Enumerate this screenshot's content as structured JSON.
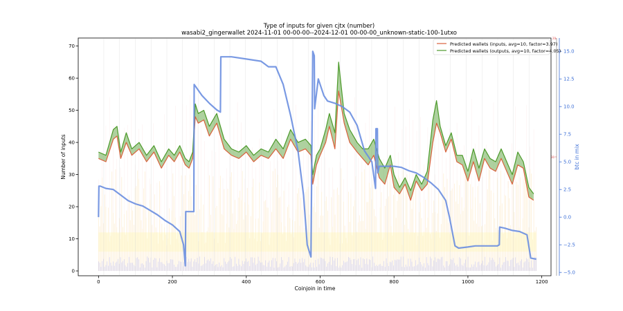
{
  "chart_data": {
    "type": "line",
    "title": "Type of inputs for given cjtx (number)",
    "subtitle": "wasabi2_gingerwallet 2024-11-01 00-00-00--2024-12-01 00-00-00_unknown-static-100-1utxo",
    "xlabel": "Coinjoin in time",
    "ylabel": "Number of inputs",
    "y2label": "btc in mix",
    "xlim": [
      -55,
      1225
    ],
    "ylim": [
      -1.5,
      72.5
    ],
    "y2lim": [
      -5.3,
      16.2
    ],
    "xticks": [
      0,
      200,
      400,
      600,
      800,
      1000,
      1200
    ],
    "yticks": [
      0,
      10,
      20,
      30,
      40,
      50,
      60,
      70
    ],
    "y2ticks": [
      -5.0,
      -2.5,
      0.0,
      2.5,
      5.0,
      7.5,
      10.0,
      12.5,
      15.0
    ],
    "y2tick_labels": [
      "−5.0",
      "−2.5",
      "0.0",
      "2.5",
      "5.0",
      "7.5",
      "10.0",
      "12.5",
      "15.0"
    ],
    "y3_marker_labels": [
      "30",
      "20"
    ],
    "legend_position": "top-right",
    "series": [
      {
        "name": "Predicted wallets (inputs, avg=10, factor=3.97)",
        "color": "#d9603b",
        "x": [
          0,
          20,
          40,
          50,
          60,
          75,
          90,
          110,
          130,
          150,
          170,
          190,
          205,
          220,
          235,
          245,
          255,
          262,
          270,
          285,
          300,
          320,
          340,
          360,
          380,
          400,
          420,
          440,
          460,
          480,
          500,
          520,
          540,
          560,
          575,
          580,
          590,
          600,
          615,
          625,
          640,
          650,
          665,
          680,
          700,
          715,
          730,
          745,
          760,
          775,
          790,
          800,
          815,
          830,
          845,
          860,
          875,
          890,
          905,
          915,
          925,
          940,
          955,
          970,
          985,
          1000,
          1015,
          1030,
          1045,
          1060,
          1075,
          1090,
          1105,
          1120,
          1135,
          1150,
          1165,
          1178
        ],
        "values": [
          35,
          34,
          41,
          42,
          35,
          40,
          36,
          38,
          34,
          37,
          32,
          36,
          34,
          37,
          33,
          32,
          35,
          48,
          46,
          47,
          42,
          46,
          38,
          36,
          35,
          37,
          34,
          36,
          35,
          38,
          35,
          41,
          37,
          38,
          36,
          27,
          33,
          36,
          40,
          45,
          38,
          56,
          46,
          40,
          37,
          35,
          33,
          36,
          29,
          27,
          33,
          26,
          24,
          27,
          22,
          28,
          25,
          27,
          40,
          46,
          43,
          37,
          41,
          34,
          33,
          28,
          34,
          28,
          35,
          32,
          31,
          35,
          31,
          27,
          33,
          32,
          23,
          22
        ]
      },
      {
        "name": "Predicted wallets (outputs, avg=10, factor=4.05)",
        "color": "#4c9a2a",
        "x": [
          0,
          20,
          40,
          50,
          60,
          75,
          90,
          110,
          130,
          150,
          170,
          190,
          205,
          220,
          235,
          245,
          255,
          262,
          270,
          285,
          300,
          320,
          340,
          360,
          380,
          400,
          420,
          440,
          460,
          480,
          500,
          520,
          540,
          560,
          575,
          580,
          590,
          600,
          615,
          625,
          640,
          650,
          665,
          680,
          700,
          715,
          730,
          745,
          760,
          775,
          790,
          800,
          815,
          830,
          845,
          860,
          875,
          890,
          905,
          915,
          925,
          940,
          955,
          970,
          985,
          1000,
          1015,
          1030,
          1045,
          1060,
          1075,
          1090,
          1105,
          1120,
          1135,
          1150,
          1165,
          1178
        ],
        "values": [
          37,
          36,
          44,
          45,
          37,
          43,
          38,
          40,
          36,
          39,
          34,
          38,
          36,
          39,
          35,
          34,
          37,
          52,
          49,
          50,
          45,
          49,
          41,
          38,
          37,
          39,
          36,
          38,
          37,
          41,
          38,
          44,
          40,
          41,
          39,
          30,
          36,
          38,
          44,
          49,
          43,
          65,
          49,
          44,
          40,
          38,
          38,
          41,
          35,
          32,
          36,
          30,
          26,
          29,
          25,
          30,
          27,
          31,
          47,
          53,
          45,
          39,
          43,
          36,
          36,
          31,
          38,
          32,
          38,
          35,
          34,
          38,
          34,
          30,
          37,
          34,
          26,
          24
        ]
      },
      {
        "name": "btc in mix",
        "axis": "right",
        "color": "#6a8ee0",
        "x": [
          0,
          1,
          5,
          20,
          40,
          60,
          80,
          100,
          120,
          140,
          160,
          180,
          200,
          220,
          230,
          235,
          236,
          250,
          258,
          259,
          280,
          300,
          320,
          330,
          331,
          360,
          400,
          440,
          460,
          480,
          500,
          520,
          540,
          555,
          565,
          575,
          580,
          584,
          585,
          595,
          610,
          620,
          640,
          660,
          680,
          700,
          720,
          740,
          750,
          751,
          755,
          756,
          760,
          780,
          800,
          820,
          840,
          860,
          880,
          900,
          920,
          940,
          950,
          965,
          975,
          1000,
          1020,
          1040,
          1060,
          1080,
          1085,
          1086,
          1100,
          1120,
          1140,
          1160,
          1170,
          1185
        ],
        "values": [
          0.0,
          2.8,
          2.8,
          2.6,
          2.5,
          2.0,
          1.5,
          1.2,
          1.0,
          0.6,
          0.2,
          -0.3,
          -0.7,
          -1.3,
          -2.5,
          -4.4,
          0.5,
          0.5,
          0.5,
          12.0,
          11.0,
          10.3,
          9.7,
          9.5,
          14.5,
          14.5,
          14.3,
          14.1,
          13.6,
          13.6,
          12.0,
          9.2,
          6.0,
          2.0,
          -2.5,
          -3.6,
          15.0,
          14.6,
          9.8,
          12.5,
          11.0,
          10.5,
          10.3,
          10.0,
          9.5,
          8.3,
          6.0,
          5.0,
          2.6,
          8.0,
          8.0,
          4.0,
          4.6,
          4.6,
          4.6,
          4.5,
          4.2,
          4.0,
          3.6,
          3.1,
          2.5,
          1.5,
          0.0,
          -2.6,
          -2.8,
          -2.7,
          -2.6,
          -2.6,
          -2.6,
          -2.6,
          -2.5,
          -0.9,
          -1.0,
          -1.2,
          -1.3,
          -1.6,
          -3.7,
          -3.8
        ]
      }
    ]
  }
}
